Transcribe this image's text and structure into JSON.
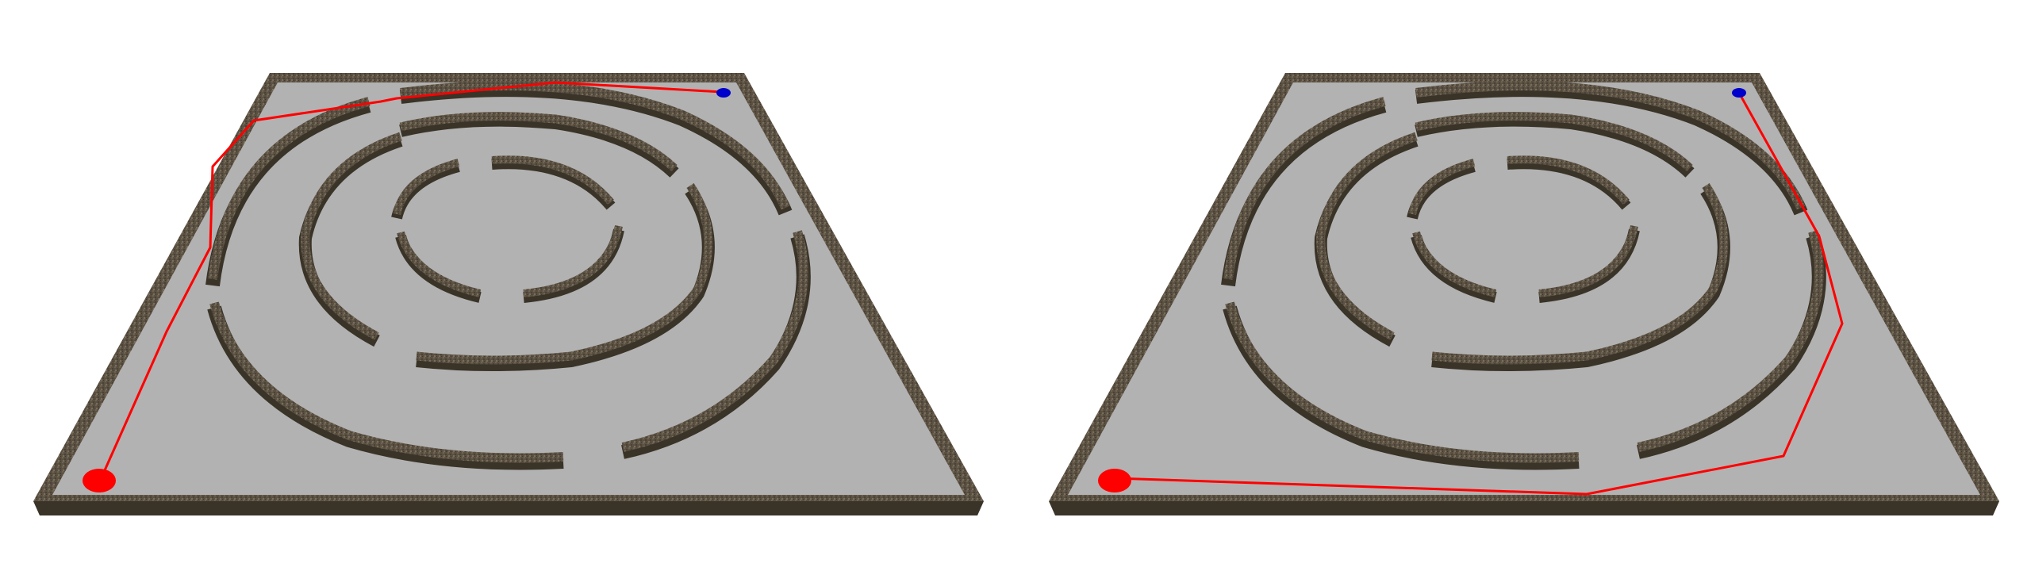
{
  "scene": {
    "background": "#ffffff",
    "colors": {
      "board_surface": "#b2b2b2",
      "wall_top": "#5b5143",
      "wall_side": "#3a3328",
      "path_line": "#ff0000",
      "start_marker": "#ff0000",
      "goal_marker": "#0000cc"
    },
    "panels": [
      {
        "id": "left",
        "description_name": "maze-panel-left",
        "start_marker": "red-circle",
        "goal_marker": "blue-circle",
        "route": "through-gaps"
      },
      {
        "id": "right",
        "description_name": "maze-panel-right",
        "start_marker": "red-circle",
        "goal_marker": "blue-circle",
        "route": "around-walls"
      }
    ]
  }
}
